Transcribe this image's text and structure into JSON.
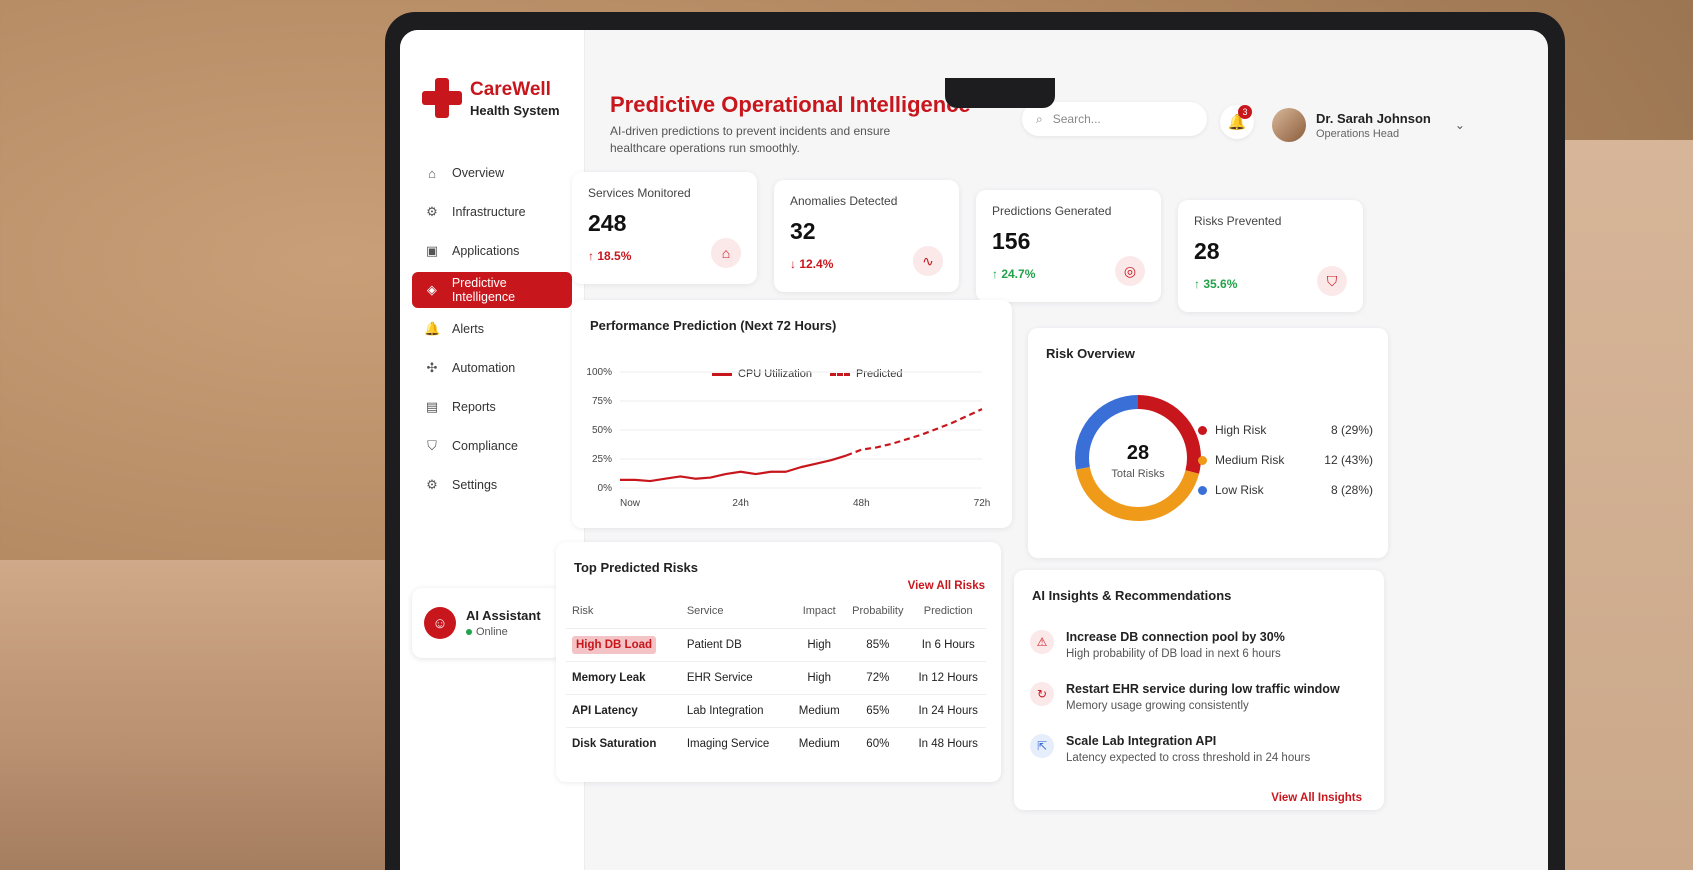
{
  "brand": {
    "name": "CareWell",
    "tagline": "Health System"
  },
  "nav": [
    {
      "label": "Overview",
      "icon": "home-icon",
      "glyph": "⌂",
      "active": false
    },
    {
      "label": "Infrastructure",
      "icon": "server-icon",
      "glyph": "⚙",
      "active": false
    },
    {
      "label": "Applications",
      "icon": "apps-icon",
      "glyph": "▣",
      "active": false
    },
    {
      "label": "Predictive Intelligence",
      "icon": "brain-icon",
      "glyph": "◈",
      "active": true
    },
    {
      "label": "Alerts",
      "icon": "bell-icon",
      "glyph": "🔔",
      "active": false
    },
    {
      "label": "Automation",
      "icon": "automation-icon",
      "glyph": "✣",
      "active": false
    },
    {
      "label": "Reports",
      "icon": "report-icon",
      "glyph": "▤",
      "active": false
    },
    {
      "label": "Compliance",
      "icon": "shield-icon",
      "glyph": "⛉",
      "active": false
    },
    {
      "label": "Settings",
      "icon": "gear-icon",
      "glyph": "⚙",
      "active": false
    }
  ],
  "ai_assistant": {
    "title": "AI Assistant",
    "status": "Online"
  },
  "header": {
    "title": "Predictive Operational Intelligence",
    "subtitle": "AI-driven predictions to prevent incidents and ensure healthcare operations run smoothly.",
    "search_placeholder": "Search...",
    "notification_count": "3",
    "user_name": "Dr. Sarah Johnson",
    "user_role": "Operations Head"
  },
  "stats": [
    {
      "label": "Services Monitored",
      "value": "248",
      "delta": "↑ 18.5%",
      "tone": "up-red",
      "icon": "hospital-icon",
      "glyph": "⌂"
    },
    {
      "label": "Anomalies Detected",
      "value": "32",
      "delta": "↓ 12.4%",
      "tone": "down-red",
      "icon": "pulse-icon",
      "glyph": "∿"
    },
    {
      "label": "Predictions Generated",
      "value": "156",
      "delta": "↑ 24.7%",
      "tone": "up-green",
      "icon": "target-icon",
      "glyph": "◎"
    },
    {
      "label": "Risks Prevented",
      "value": "28",
      "delta": "↑ 35.6%",
      "tone": "up-green",
      "icon": "shield-check-icon",
      "glyph": "⛉"
    }
  ],
  "performance": {
    "title": "Performance Prediction (Next 72 Hours)",
    "legend_actual": "CPU Utilization",
    "legend_predicted": "Predicted"
  },
  "chart_data": {
    "type": "line",
    "title": "Performance Prediction (Next 72 Hours)",
    "x_ticks": [
      "Now",
      "24h",
      "48h",
      "72h"
    ],
    "y_ticks": [
      "0%",
      "25%",
      "50%",
      "75%",
      "100%"
    ],
    "ylim": [
      0,
      100
    ],
    "xlim": [
      0,
      72
    ],
    "series": [
      {
        "name": "CPU Utilization",
        "style": "solid",
        "color": "#c8161d",
        "x": [
          0,
          3,
          6,
          9,
          12,
          15,
          18,
          21,
          24,
          27,
          30,
          33,
          36,
          39,
          42,
          45
        ],
        "y": [
          7,
          7,
          6,
          8,
          10,
          8,
          9,
          12,
          14,
          12,
          14,
          14,
          18,
          21,
          24,
          28
        ]
      },
      {
        "name": "Predicted",
        "style": "dashed",
        "color": "#c8161d",
        "x": [
          45,
          48,
          51,
          54,
          57,
          60,
          63,
          66,
          69,
          72
        ],
        "y": [
          28,
          33,
          35,
          38,
          42,
          46,
          51,
          56,
          62,
          68
        ]
      }
    ]
  },
  "risk_overview": {
    "title": "Risk Overview",
    "total_value": "28",
    "total_label": "Total Risks",
    "items": [
      {
        "label": "High Risk",
        "value": "8 (29%)",
        "color": "#c8161d",
        "share": 29
      },
      {
        "label": "Medium Risk",
        "value": "12 (43%)",
        "color": "#f09a1a",
        "share": 43
      },
      {
        "label": "Low Risk",
        "value": "8 (28%)",
        "color": "#3a6fd8",
        "share": 28
      }
    ]
  },
  "top_risks": {
    "title": "Top Predicted Risks",
    "link": "View All Risks",
    "columns": [
      "Risk",
      "Service",
      "Impact",
      "Probability",
      "Prediction"
    ],
    "rows": [
      [
        "High DB Load",
        "Patient DB",
        "High",
        "85%",
        "In 6 Hours"
      ],
      [
        "Memory Leak",
        "EHR Service",
        "High",
        "72%",
        "In 12 Hours"
      ],
      [
        "API Latency",
        "Lab Integration",
        "Medium",
        "65%",
        "In 24 Hours"
      ],
      [
        "Disk Saturation",
        "Imaging Service",
        "Medium",
        "60%",
        "In 48 Hours"
      ]
    ]
  },
  "insights": {
    "title": "AI Insights & Recommendations",
    "link": "View All Insights",
    "items": [
      {
        "title": "Increase DB connection pool by 30%",
        "desc": "High probability of DB load in next 6 hours",
        "icon": "alert-icon",
        "glyph": "⚠",
        "tone": "red"
      },
      {
        "title": "Restart EHR service during low traffic window",
        "desc": "Memory usage growing consistently",
        "icon": "restart-icon",
        "glyph": "↻",
        "tone": "red"
      },
      {
        "title": "Scale Lab Integration API",
        "desc": "Latency expected to cross threshold in 24 hours",
        "icon": "scale-icon",
        "glyph": "⇱",
        "tone": "blue"
      }
    ]
  }
}
